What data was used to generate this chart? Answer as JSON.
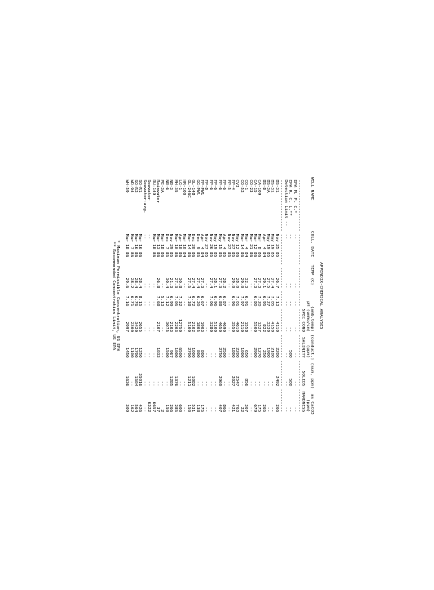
{
  "title": "APPENDIX-CHEMICAL ANALYSES",
  "rows": [
    [
      "BS-31",
      "Nov 25 85",
      "26.7",
      "7.13",
      "4110",
      "2200",
      "2492",
      "266"
    ],
    [
      "BS-31",
      "May 19 85",
      "27.4",
      "7.05",
      "4150",
      "2100",
      "--",
      "--"
    ],
    [
      "BS-3A",
      "May 19 85",
      "27.5",
      "7.27",
      "3330",
      "1900",
      "--",
      "--"
    ],
    [
      "BS-8",
      "Apr  4 84",
      "29.1",
      "6.95",
      "822",
      "250",
      "--",
      "265"
    ],
    [
      "CA-109",
      "Mar  8 86",
      "27.3",
      "7.20",
      "1327",
      "1270",
      "--",
      "175"
    ],
    [
      "CA-15",
      "Mar 12 86",
      "27.3",
      "6.80",
      "5500",
      "2900",
      "--",
      "679"
    ],
    [
      "CO-23",
      "Mar 21 86",
      "--",
      "--",
      "--",
      "--",
      "--",
      "--"
    ],
    [
      "CO-1",
      "Mar  4 84",
      "32.3",
      "6.91",
      "1558",
      "650",
      "856",
      "367"
    ],
    [
      "CO-52",
      "Mar 14 86",
      "29.0",
      "7.97",
      "2110",
      "1000",
      "--",
      "22"
    ],
    [
      "CVI",
      "May 12 86",
      "28.0",
      "7.01",
      "4610",
      "2200",
      "2547",
      "763"
    ],
    [
      "FP-4",
      "Nov 27 85",
      "29.0",
      "6.96",
      "3550",
      "1800",
      "2027",
      "421"
    ],
    [
      "FP-5",
      "Nov 27 85",
      "--",
      "--",
      "--",
      "--",
      "--",
      "--"
    ],
    [
      "FP-6",
      "Apr  4 85",
      "28.2",
      "6.87",
      "4690",
      "2500",
      "--",
      "866"
    ],
    [
      "FP-6",
      "May 15 85",
      "27.3",
      "6.88",
      "4650",
      "2750",
      "2969",
      "407"
    ],
    [
      "FP-6",
      "May 19 85",
      "28.1",
      "6.96",
      "5100",
      "--",
      "--",
      "--"
    ],
    [
      "FP-6",
      "Nov 26 85",
      "27.4",
      "7.06",
      "3280",
      "--",
      "--",
      "--"
    ],
    [
      "FP-8",
      "Nov 27 85",
      "--",
      "--",
      "--",
      "--",
      "--",
      "--"
    ],
    [
      "FP-PW1",
      "Apr  4 84",
      "27.3",
      "6.67",
      "1903",
      "800",
      "--",
      "175"
    ],
    [
      "GG-PWl",
      "Dec  9 85",
      "27.4",
      "6.20",
      "1805",
      "800",
      "--",
      "138"
    ],
    [
      "GL-14B",
      "Dec 20 86",
      "27.4",
      "6.72",
      "2102",
      "1000",
      "1082",
      "531"
    ],
    [
      "GL-246C",
      "Mar 14 86",
      "27.5",
      "7.38",
      "5100",
      "2700",
      "1211",
      "150"
    ],
    [
      "HR-100",
      "Mar 10 84",
      "--",
      "--",
      "--",
      "--",
      "--",
      "--"
    ],
    [
      "LG-1",
      "Apr 10 86",
      "30.8",
      "7.32",
      "12750",
      "6500",
      "--",
      "600"
    ],
    [
      "MH-35",
      "Mar 10 86",
      "27.3",
      "7.05",
      "2203",
      "1000",
      "1376",
      "285"
    ],
    [
      "NB-3",
      "Nov 29 85",
      "21.3",
      "6.99",
      "2103",
      "967",
      "1285",
      "266"
    ],
    [
      "NB-6",
      "Dec  7 85",
      "30.4",
      "7.12",
      "3075",
      "1500",
      "--",
      "150"
    ],
    [
      "PE-3A",
      "Mar 18 86",
      "--",
      "5.13",
      "--",
      "--",
      "--",
      "2"
    ],
    [
      "Rainwater",
      "Mar 13 86",
      "26.8",
      "7.68",
      "2107",
      "1033",
      "--",
      "37"
    ],
    [
      "RU-149",
      "Mar 18 86",
      "--",
      "--",
      "--",
      "--",
      "--",
      "6657"
    ],
    [
      "Seawater",
      "--",
      "--",
      "--",
      "--",
      "--",
      "--",
      "6322"
    ],
    [
      "Seawater-avg.",
      "--",
      "--",
      "--",
      "--",
      "--",
      "--",
      "--"
    ],
    [
      "SO-R1",
      "Mar 16 86",
      "28.4",
      "8.15",
      "2655",
      "1250",
      "35016",
      "426"
    ],
    [
      "SO-R2",
      "Mar 16 86",
      "28.4",
      "6.76",
      "3420",
      "1700",
      "1504",
      "564"
    ],
    [
      "WD-94",
      "Mar  7 86",
      "28.2",
      "6.71",
      "2300",
      "1100",
      "--",
      "162"
    ],
    [
      "WH-59",
      "Mar 18 86",
      "29.6",
      "7.16",
      "2997",
      "1450",
      "1636",
      "309"
    ]
  ],
  "footnotes": [
    "* Maximum Permissible Concentration, US EPA",
    "** Recommended Concentration Limit, US EPA"
  ]
}
